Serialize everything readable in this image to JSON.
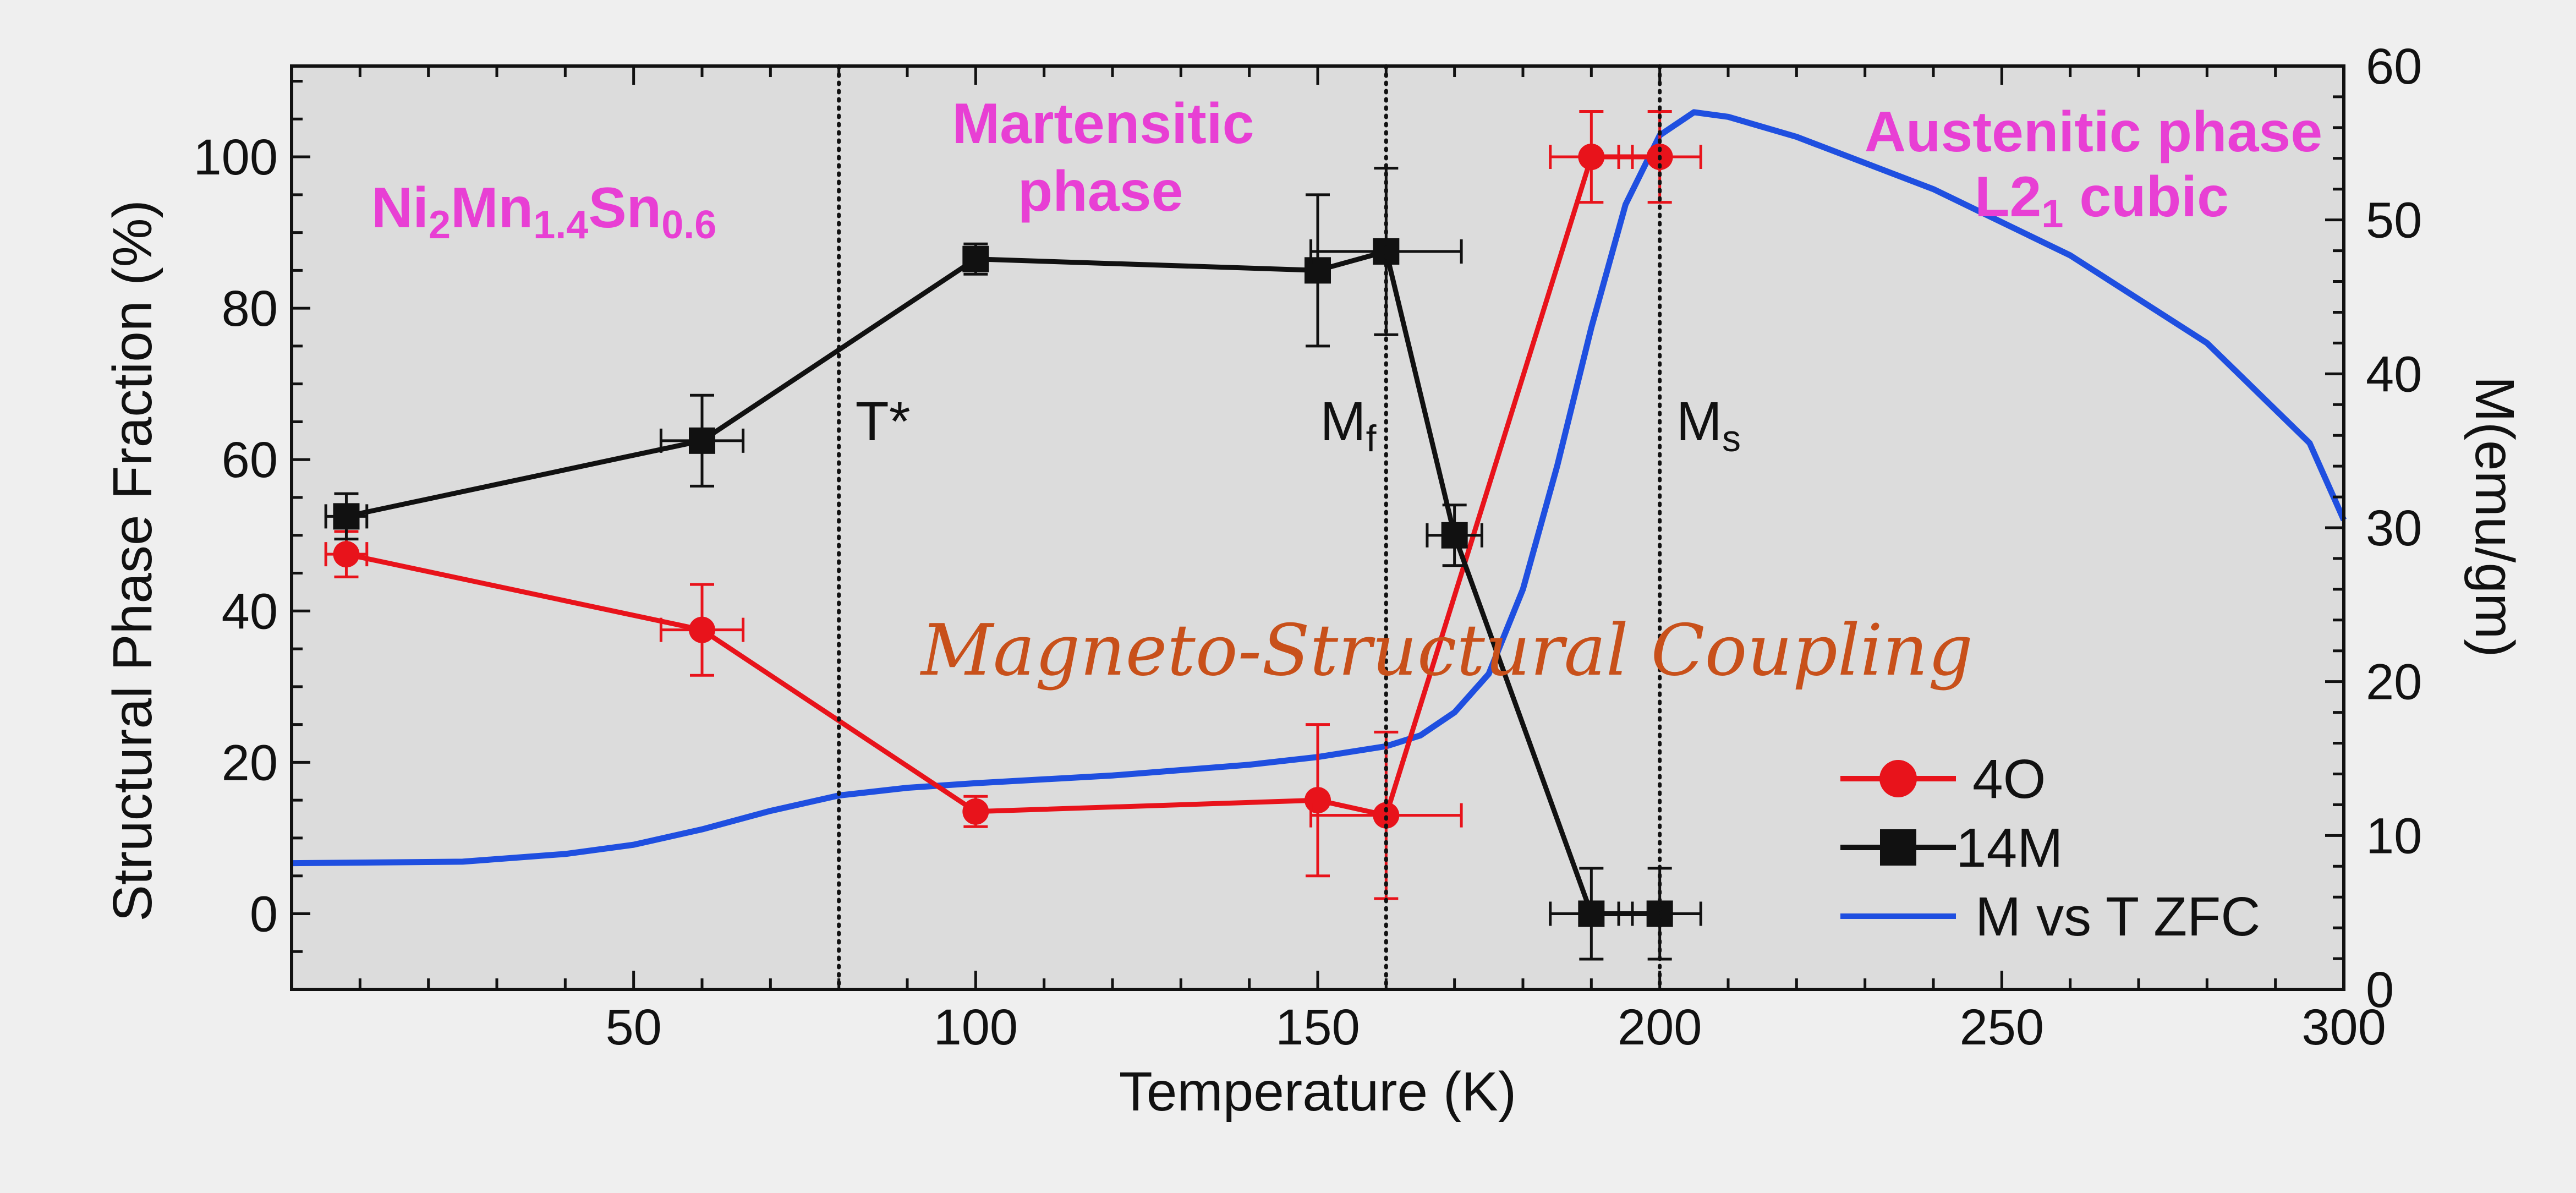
{
  "colors": {
    "plot_bg": "#dcdcdc",
    "page_bg": "#efefef",
    "series_4O": "#e8131b",
    "series_14M": "#111111",
    "series_MT": "#1f4fe0",
    "annotation_pink": "#e83fd4",
    "annotation_orange": "#c8501a"
  },
  "chart_data": {
    "type": "line",
    "xlabel": "Temperature (K)",
    "ylabel": "Structural Phase Fraction (%)",
    "y2label": "M(emu/gm)",
    "xlim": [
      0,
      300
    ],
    "ylim": [
      -10,
      112
    ],
    "y2lim": [
      0,
      60
    ],
    "x_ticks": [
      "50",
      "100",
      "150",
      "200",
      "250",
      "300"
    ],
    "y_ticks": [
      "0",
      "20",
      "40",
      "60",
      "80",
      "100"
    ],
    "y2_ticks": [
      "0",
      "10",
      "20",
      "30",
      "40",
      "50",
      "60"
    ],
    "grid": false,
    "legend_position": "bottom-right",
    "vlines": [
      {
        "x": 80,
        "label_main": "T*",
        "label_sub": ""
      },
      {
        "x": 160,
        "label_main": "M",
        "label_sub": "f"
      },
      {
        "x": 200,
        "label_main": "M",
        "label_sub": "s"
      }
    ],
    "series": [
      {
        "name": "4O",
        "axis": "left",
        "marker": "circle",
        "points": [
          {
            "x": 8,
            "y": 47.5,
            "xerr": 3,
            "yerr": 3
          },
          {
            "x": 60,
            "y": 37.5,
            "xerr": 6,
            "yerr": 6
          },
          {
            "x": 100,
            "y": 13.5,
            "xerr": 0,
            "yerr": 2
          },
          {
            "x": 150,
            "y": 15,
            "xerr": 0,
            "yerr": 10
          },
          {
            "x": 160,
            "y": 13,
            "xerr": 11,
            "yerr": 11
          },
          {
            "x": 190,
            "y": 100,
            "xerr": 6,
            "yerr": 6
          },
          {
            "x": 200,
            "y": 100,
            "xerr": 6,
            "yerr": 6
          }
        ]
      },
      {
        "name": "14M",
        "axis": "left",
        "marker": "square",
        "points": [
          {
            "x": 8,
            "y": 52.5,
            "xerr": 3,
            "yerr": 3
          },
          {
            "x": 60,
            "y": 62.5,
            "xerr": 6,
            "yerr": 6
          },
          {
            "x": 100,
            "y": 86.5,
            "xerr": 0,
            "yerr": 2
          },
          {
            "x": 150,
            "y": 85,
            "xerr": 0,
            "yerr": 10
          },
          {
            "x": 160,
            "y": 87.5,
            "xerr": 11,
            "yerr": 11
          },
          {
            "x": 170,
            "y": 50,
            "xerr": 4,
            "yerr": 4
          },
          {
            "x": 190,
            "y": 0,
            "xerr": 6,
            "yerr": 6
          },
          {
            "x": 200,
            "y": 0,
            "xerr": 6,
            "yerr": 6
          }
        ]
      },
      {
        "name": "M vs T ZFC",
        "axis": "right",
        "marker": "none",
        "points": [
          {
            "x": 0,
            "y": 8.2
          },
          {
            "x": 25,
            "y": 8.3
          },
          {
            "x": 40,
            "y": 8.8
          },
          {
            "x": 50,
            "y": 9.4
          },
          {
            "x": 60,
            "y": 10.4
          },
          {
            "x": 70,
            "y": 11.6
          },
          {
            "x": 80,
            "y": 12.6
          },
          {
            "x": 90,
            "y": 13.1
          },
          {
            "x": 100,
            "y": 13.4
          },
          {
            "x": 120,
            "y": 13.9
          },
          {
            "x": 140,
            "y": 14.6
          },
          {
            "x": 150,
            "y": 15.1
          },
          {
            "x": 160,
            "y": 15.8
          },
          {
            "x": 165,
            "y": 16.5
          },
          {
            "x": 170,
            "y": 18
          },
          {
            "x": 175,
            "y": 20.5
          },
          {
            "x": 180,
            "y": 26
          },
          {
            "x": 185,
            "y": 34
          },
          {
            "x": 190,
            "y": 43
          },
          {
            "x": 195,
            "y": 51
          },
          {
            "x": 200,
            "y": 55.5
          },
          {
            "x": 205,
            "y": 57
          },
          {
            "x": 210,
            "y": 56.7
          },
          {
            "x": 220,
            "y": 55.4
          },
          {
            "x": 240,
            "y": 52
          },
          {
            "x": 260,
            "y": 47.7
          },
          {
            "x": 280,
            "y": 42
          },
          {
            "x": 295,
            "y": 35.5
          },
          {
            "x": 300,
            "y": 30.5
          }
        ]
      }
    ],
    "annotations": {
      "formula_parts": [
        "Ni",
        "2",
        "Mn",
        "1.4",
        "Sn",
        "0.6"
      ],
      "martensitic_line1": "Martensitic",
      "martensitic_line2": "phase",
      "austenitic_line1": "Austenitic phase",
      "austenitic_line2_main": "L2",
      "austenitic_line2_sub": "1",
      "austenitic_line2_rest": " cubic",
      "coupling": "Magneto-Structural Coupling"
    }
  }
}
